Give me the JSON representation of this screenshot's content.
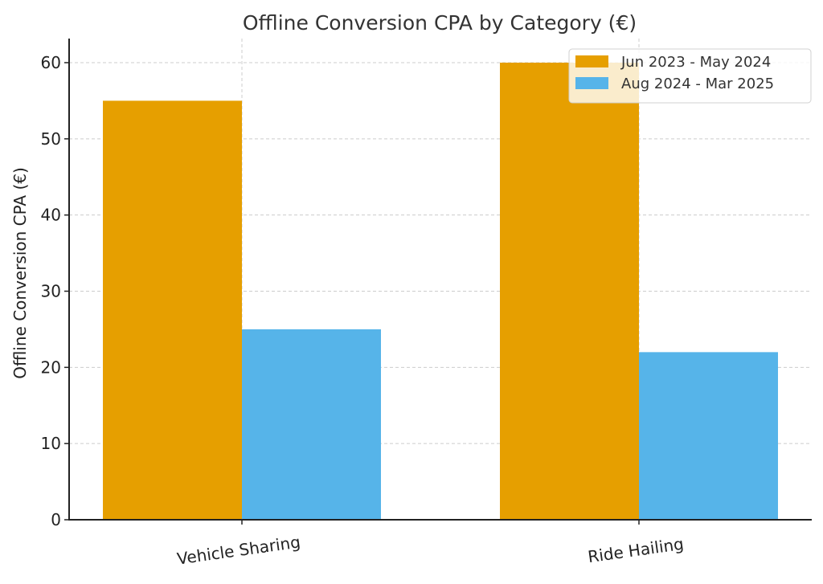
{
  "chart_data": {
    "type": "bar",
    "title": "Offline Conversion CPA by Category (€)",
    "xlabel": "",
    "ylabel": "Offline Conversion CPA (€)",
    "categories": [
      "Vehicle Sharing",
      "Ride Hailing"
    ],
    "series": [
      {
        "name": "Jun 2023 - May 2024",
        "values": [
          55,
          60
        ],
        "color": "#E69F00"
      },
      {
        "name": "Aug 2024 - Mar 2025",
        "values": [
          25,
          22
        ],
        "color": "#56B4E9"
      }
    ],
    "ylim": [
      0,
      63
    ],
    "yticks": [
      0,
      10,
      20,
      30,
      40,
      50,
      60
    ],
    "ytick_labels": [
      "0",
      "10",
      "20",
      "30",
      "40",
      "50",
      "60"
    ],
    "grid": true,
    "legend_position": "top-right"
  }
}
